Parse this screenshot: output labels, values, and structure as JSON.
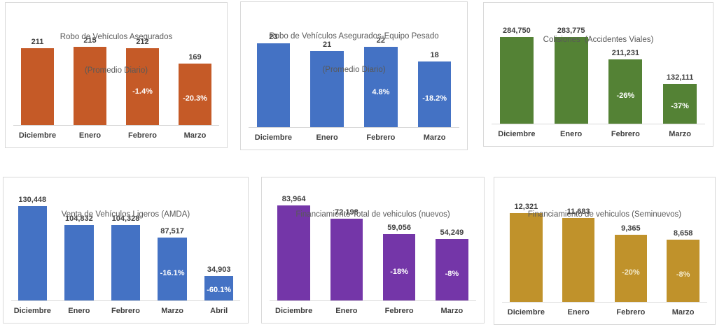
{
  "page": {
    "background": "#ffffff",
    "panel_border_color": "#d9d9d9"
  },
  "text_colors": {
    "title": "#595959",
    "value_label": "#404040",
    "category_label": "#404040"
  },
  "chart_data": [
    {
      "type": "bar",
      "title": "Robo de Vehículos Asegurados",
      "subtitle": "(Promedio Diario)",
      "categories": [
        "Diciembre",
        "Enero",
        "Febrero",
        "Marzo"
      ],
      "values": [
        211,
        215,
        212,
        169
      ],
      "value_labels": [
        "211",
        "215",
        "212",
        "169"
      ],
      "pct_labels": [
        "",
        "",
        "-1.4%",
        "-20.3%"
      ],
      "bar_color": "#C55A27",
      "pct_label_color": "#FFFFFF",
      "xlabel": "",
      "ylabel": "",
      "y_axis": "hidden",
      "grid": false,
      "legend": "none"
    },
    {
      "type": "bar",
      "title": "Robo de Vehículos Asegurados-Equipo Pesado",
      "subtitle": "(Promedio Diario)",
      "categories": [
        "Diciembre",
        "Enero",
        "Febrero",
        "Marzo"
      ],
      "values": [
        23,
        21,
        22,
        18
      ],
      "value_labels": [
        "23",
        "21",
        "22",
        "18"
      ],
      "pct_labels": [
        "",
        "",
        "4.8%",
        "-18.2%"
      ],
      "bar_color": "#4472C4",
      "pct_label_color": "#FFFFFF",
      "xlabel": "",
      "ylabel": "",
      "y_axis": "hidden",
      "grid": false,
      "legend": "none"
    },
    {
      "type": "bar",
      "title": "Colisiones  (Accidentes Viales)",
      "subtitle": "",
      "categories": [
        "Diciembre",
        "Enero",
        "Febrero",
        "Marzo"
      ],
      "values": [
        284750,
        283775,
        211231,
        132111
      ],
      "value_labels": [
        "284,750",
        "283,775",
        "211,231",
        "132,111"
      ],
      "pct_labels": [
        "",
        "",
        "-26%",
        "-37%"
      ],
      "bar_color": "#548235",
      "pct_label_color": "#FFFFFF",
      "xlabel": "",
      "ylabel": "",
      "y_axis": "hidden",
      "grid": false,
      "legend": "none"
    },
    {
      "type": "bar",
      "title": "Venta de Vehículos Ligeros (AMDA)",
      "subtitle": "",
      "categories": [
        "Diciembre",
        "Enero",
        "Febrero",
        "Marzo",
        "Abril"
      ],
      "values": [
        130448,
        104832,
        104328,
        87517,
        34903
      ],
      "value_labels": [
        "130,448",
        "104,832",
        "104,328",
        "87,517",
        "34,903"
      ],
      "pct_labels": [
        "",
        "",
        "",
        "-16.1%",
        "-60.1%"
      ],
      "bar_color": "#4472C4",
      "pct_label_color": "#FFFFFF",
      "xlabel": "",
      "ylabel": "",
      "y_axis": "hidden",
      "grid": false,
      "legend": "none"
    },
    {
      "type": "bar",
      "title": "Financiamiento Total de vehiculos (nuevos)",
      "subtitle": "",
      "categories": [
        "Diciembre",
        "Enero",
        "Febrero",
        "Marzo"
      ],
      "values": [
        83964,
        72198,
        59056,
        54249
      ],
      "value_labels": [
        "83,964",
        "72,198",
        "59,056",
        "54,249"
      ],
      "pct_labels": [
        "",
        "",
        "-18%",
        "-8%"
      ],
      "bar_color": "#7436A8",
      "pct_label_color": "#FFFFFF",
      "xlabel": "",
      "ylabel": "",
      "y_axis": "hidden",
      "grid": false,
      "legend": "none"
    },
    {
      "type": "bar",
      "title": "Financiamiento de vehiculos (Seminuevos)",
      "subtitle": "",
      "categories": [
        "Diciembre",
        "Enero",
        "Febrero",
        "Marzo"
      ],
      "values": [
        12321,
        11683,
        9365,
        8658
      ],
      "value_labels": [
        "12,321",
        "11,683",
        "9,365",
        "8,658"
      ],
      "pct_labels": [
        "",
        "",
        "-20%",
        "-8%"
      ],
      "bar_color": "#C0922B",
      "pct_label_color": "#F2E9C9",
      "xlabel": "",
      "ylabel": "",
      "y_axis": "hidden",
      "grid": false,
      "legend": "none"
    }
  ]
}
